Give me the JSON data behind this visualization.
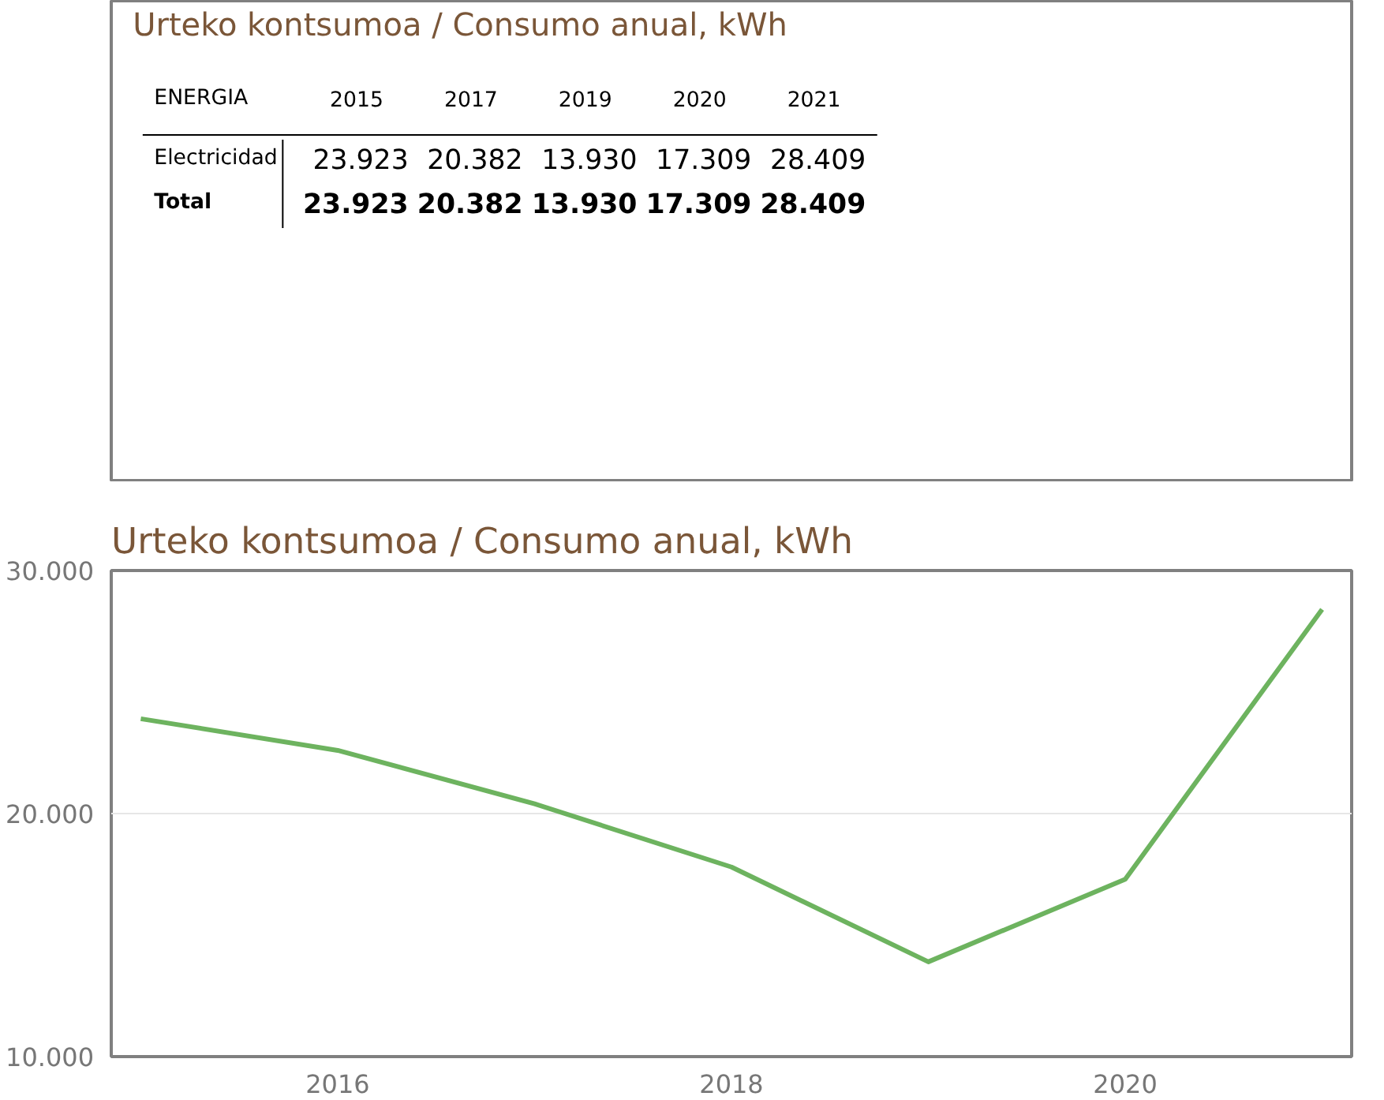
{
  "chart_data": [
    {
      "type": "other",
      "title": "Urteko kontsumoa / Consumo anual, kWh",
      "legend_title": "ENERGIA",
      "categories": [
        "2015",
        "2017",
        "2019",
        "2020",
        "2021"
      ],
      "series": [
        {
          "name": "Electricidad",
          "values": [
            23923,
            20382,
            13930,
            17309,
            28409
          ],
          "value_labels": [
            "23.923",
            "20.382",
            "13.930",
            "17.309",
            "28.409"
          ]
        },
        {
          "name": "Total",
          "values": [
            23923,
            20382,
            13930,
            17309,
            28409
          ],
          "value_labels": [
            "23.923",
            "20.382",
            "13.930",
            "17.309",
            "28.409"
          ]
        }
      ]
    },
    {
      "type": "line",
      "title": "Urteko kontsumoa / Consumo anual, kWh",
      "x": [
        2015,
        2016,
        2017,
        2018,
        2019,
        2020,
        2021
      ],
      "series": [
        {
          "color": "#6db35f",
          "values": [
            23900,
            22600,
            20400,
            17800,
            13900,
            17300,
            28400
          ]
        }
      ],
      "xlim": [
        2014.85,
        2021.15
      ],
      "ylim": [
        10000,
        30000
      ],
      "xticks": [
        2016,
        2018,
        2020
      ],
      "yticks": [
        {
          "value": 10000,
          "label": "10.000"
        },
        {
          "value": 20000,
          "label": "20.000"
        },
        {
          "value": 30000,
          "label": "30.000"
        }
      ],
      "grid": "y"
    }
  ]
}
